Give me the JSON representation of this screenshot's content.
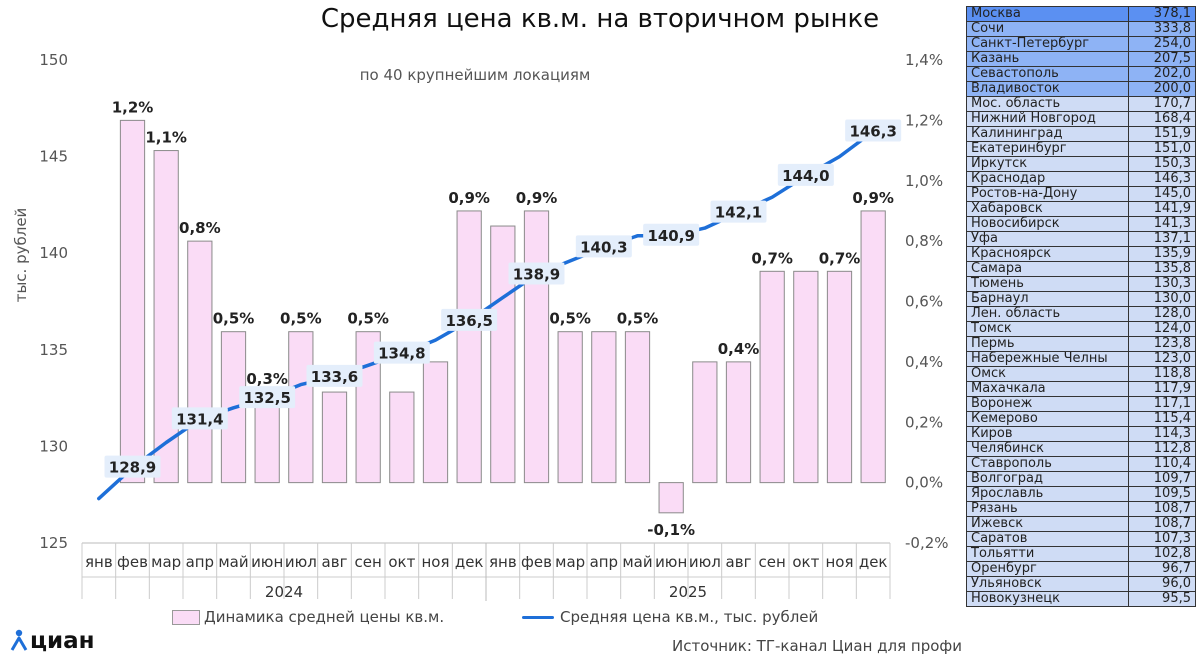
{
  "title": "Средняя цена кв.м. на вторичном рынке",
  "subtitle": "по 40 крупнейшим локациям",
  "legend": {
    "bars": "Динамика средней цены кв.м.",
    "line": "Средняя цена кв.м., тыс. рублей"
  },
  "source": "Источник: ТГ-канал Циан для профи",
  "logo": "циан",
  "colors": {
    "bar_fill": "#fadcf6",
    "bar_stroke": "#8a8a8a",
    "line": "#1e6fd8",
    "table_top": "#5b90f2",
    "table_body": "#cfdcf5"
  },
  "chart_data": {
    "type": "bar+line",
    "title": "Средняя цена кв.м. на вторичном рынке",
    "subtitle": "по 40 крупнейшим локациям",
    "ylabel_left": "тыс. рублей",
    "ylim_left": [
      125,
      150
    ],
    "yticks_left": [
      "125",
      "130",
      "135",
      "140",
      "145",
      "150"
    ],
    "ylim_right": [
      -0.2,
      1.4
    ],
    "yticks_right": [
      "-0,2%",
      "0,0%",
      "0,2%",
      "0,4%",
      "0,6%",
      "0,8%",
      "1,0%",
      "1,2%",
      "1,4%"
    ],
    "categories": [
      "янв",
      "фев",
      "мар",
      "апр",
      "май",
      "июн",
      "июл",
      "авг",
      "сен",
      "окт",
      "ноя",
      "дек",
      "янв",
      "фев",
      "мар",
      "апр",
      "май",
      "июн",
      "июл",
      "авг",
      "сен",
      "окт",
      "ноя",
      "дек"
    ],
    "years": [
      {
        "label": "2024",
        "span": 12
      },
      {
        "label": "2025",
        "span": 12
      }
    ],
    "series": [
      {
        "name": "Динамика средней цены кв.м.",
        "type": "bar",
        "axis": "right",
        "values": [
          null,
          1.2,
          1.1,
          0.8,
          0.5,
          0.3,
          0.5,
          0.3,
          0.5,
          0.3,
          0.4,
          0.9,
          0.85,
          0.9,
          0.5,
          0.5,
          0.5,
          -0.1,
          0.4,
          0.4,
          0.7,
          0.7,
          0.7,
          0.9
        ],
        "labels": [
          "",
          "1,2%",
          "1,1%",
          "0,8%",
          "0,5%",
          "0,3%",
          "0,5%",
          "",
          "0,5%",
          "",
          "",
          "0,9%",
          "",
          "0,9%",
          "0,5%",
          "",
          "0,5%",
          "-0,1%",
          "",
          "0,4%",
          "0,7%",
          "",
          "0,7%",
          "0,9%"
        ]
      },
      {
        "name": "Средняя цена кв.м., тыс. рублей",
        "type": "line",
        "axis": "left",
        "values": [
          127.3,
          128.9,
          130.2,
          131.4,
          132.0,
          132.5,
          133.2,
          133.6,
          134.2,
          134.8,
          135.5,
          136.5,
          137.7,
          138.9,
          139.6,
          140.3,
          140.9,
          140.9,
          141.3,
          142.1,
          142.9,
          144.0,
          145.0,
          146.3
        ],
        "labels": [
          "",
          "128,9",
          "",
          "131,4",
          "",
          "132,5",
          "",
          "133,6",
          "",
          "134,8",
          "",
          "136,5",
          "",
          "138,9",
          "",
          "140,3",
          "",
          "140,9",
          "",
          "142,1",
          "",
          "144,0",
          "",
          "146,3"
        ]
      }
    ]
  },
  "table": [
    {
      "city": "Москва",
      "value": "378,1"
    },
    {
      "city": "Сочи",
      "value": "333,8"
    },
    {
      "city": "Санкт-Петербург",
      "value": "254,0"
    },
    {
      "city": "Казань",
      "value": "207,5"
    },
    {
      "city": "Севастополь",
      "value": "202,0"
    },
    {
      "city": "Владивосток",
      "value": "200,0"
    },
    {
      "city": "Мос. область",
      "value": "170,7"
    },
    {
      "city": "Нижний Новгород",
      "value": "168,4"
    },
    {
      "city": "Калининград",
      "value": "151,9"
    },
    {
      "city": "Екатеринбург",
      "value": "151,0"
    },
    {
      "city": "Иркутск",
      "value": "150,3"
    },
    {
      "city": "Краснодар",
      "value": "146,3"
    },
    {
      "city": "Ростов-на-Дону",
      "value": "145,0"
    },
    {
      "city": "Хабаровск",
      "value": "141,9"
    },
    {
      "city": "Новосибирск",
      "value": "141,3"
    },
    {
      "city": "Уфа",
      "value": "137,1"
    },
    {
      "city": "Красноярск",
      "value": "135,9"
    },
    {
      "city": "Самара",
      "value": "135,8"
    },
    {
      "city": "Тюмень",
      "value": "130,3"
    },
    {
      "city": "Барнаул",
      "value": "130,0"
    },
    {
      "city": "Лен. область",
      "value": "128,0"
    },
    {
      "city": "Томск",
      "value": "124,0"
    },
    {
      "city": "Пермь",
      "value": "123,8"
    },
    {
      "city": "Набережные Челны",
      "value": "123,0"
    },
    {
      "city": "Омск",
      "value": "118,8"
    },
    {
      "city": "Махачкала",
      "value": "117,9"
    },
    {
      "city": "Воронеж",
      "value": "117,1"
    },
    {
      "city": "Кемерово",
      "value": "115,4"
    },
    {
      "city": "Киров",
      "value": "114,3"
    },
    {
      "city": "Челябинск",
      "value": "112,8"
    },
    {
      "city": "Ставрополь",
      "value": "110,4"
    },
    {
      "city": "Волгоград",
      "value": "109,7"
    },
    {
      "city": "Ярославль",
      "value": "109,5"
    },
    {
      "city": "Рязань",
      "value": "108,7"
    },
    {
      "city": "Ижевск",
      "value": "108,7"
    },
    {
      "city": "Саратов",
      "value": "107,3"
    },
    {
      "city": "Тольятти",
      "value": "102,8"
    },
    {
      "city": "Оренбург",
      "value": "96,7"
    },
    {
      "city": "Ульяновск",
      "value": "96,0"
    },
    {
      "city": "Новокузнецк",
      "value": "95,5"
    }
  ]
}
